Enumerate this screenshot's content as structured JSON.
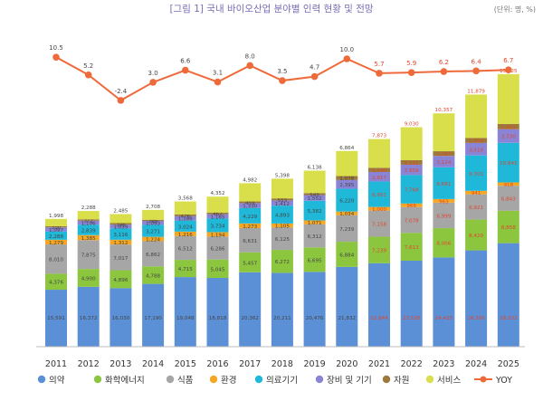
{
  "page": {
    "title": "[그림 1] 국내 바이오산업 분야별 인력 현황 및 전망",
    "unit": "(단위: 명, %)"
  },
  "chart_data": {
    "type": "bar",
    "stacked": true,
    "title": "[그림 1] 국내 바이오산업 분야별 인력 현황 및 전망",
    "unit": "(단위: 명, %)",
    "categories": [
      "2011",
      "2012",
      "2013",
      "2014",
      "2015",
      "2016",
      "2017",
      "2018",
      "2019",
      "2020",
      "2021",
      "2022",
      "2023",
      "2024",
      "2025"
    ],
    "series": [
      {
        "name": "의약",
        "color": "#5b8fd6",
        "values": [
          15591,
          16372,
          16030,
          17190,
          19048,
          18818,
          20362,
          20211,
          20476,
          21832,
          22844,
          23528,
          24425,
          26356,
          28332
        ]
      },
      {
        "name": "화학에너지",
        "color": "#8cc63f",
        "values": [
          4376,
          4900,
          4896,
          4788,
          4715,
          5045,
          5457,
          6272,
          6695,
          6884,
          7239,
          7613,
          8006,
          8420,
          8858
        ]
      },
      {
        "name": "식품",
        "color": "#a6a6a6",
        "values": [
          8010,
          7875,
          7017,
          6862,
          6512,
          6286,
          6631,
          6125,
          6312,
          7239,
          7158,
          7078,
          6999,
          6921,
          6843
        ]
      },
      {
        "name": "환경",
        "color": "#f5a623",
        "values": [
          1279,
          1385,
          1312,
          1224,
          1216,
          1194,
          1273,
          1105,
          1071,
          1034,
          1000,
          966,
          963,
          941,
          918
        ]
      },
      {
        "name": "의료기기",
        "color": "#1fb8d8",
        "values": [
          2288,
          2839,
          3116,
          3271,
          3024,
          3734,
          4229,
          4893,
          5382,
          6220,
          6951,
          7768,
          8681,
          9701,
          10841
        ]
      },
      {
        "name": "장비 및 기기",
        "color": "#8a84d6",
        "values": [
          1097,
          1106,
          1039,
          1093,
          1188,
          1165,
          1330,
          1412,
          1552,
          2395,
          2617,
          2859,
          3124,
          3414,
          3730
        ]
      },
      {
        "name": "자원",
        "color": "#9c7a3c",
        "values": [
          330,
          372,
          398,
          295,
          476,
          462,
          459,
          553,
          545,
          1078,
          1140,
          1211,
          1287,
          1359,
          1433
        ]
      },
      {
        "name": "서비스",
        "color": "#d9df4a",
        "values": [
          1998,
          2288,
          2485,
          2708,
          3568,
          4352,
          4982,
          5398,
          6138,
          6864,
          7873,
          9030,
          10357,
          11879,
          13625
        ]
      }
    ],
    "line_series": {
      "name": "YOY",
      "color": "#ee6a3a",
      "values": [
        10.5,
        5.2,
        -2.4,
        3.0,
        6.6,
        3.1,
        8.0,
        3.5,
        4.7,
        10.0,
        5.7,
        5.9,
        6.2,
        6.4,
        6.7
      ]
    },
    "projected_from": "2021",
    "legend": [
      "의약",
      "화학에너지",
      "식품",
      "환경",
      "의료기기",
      "장비 및 기기",
      "자원",
      "서비스",
      "YOY"
    ],
    "legend_position": "bottom",
    "ylim": [
      0,
      80000
    ],
    "yoy_ylim": [
      -5,
      20
    ],
    "grid": true
  }
}
